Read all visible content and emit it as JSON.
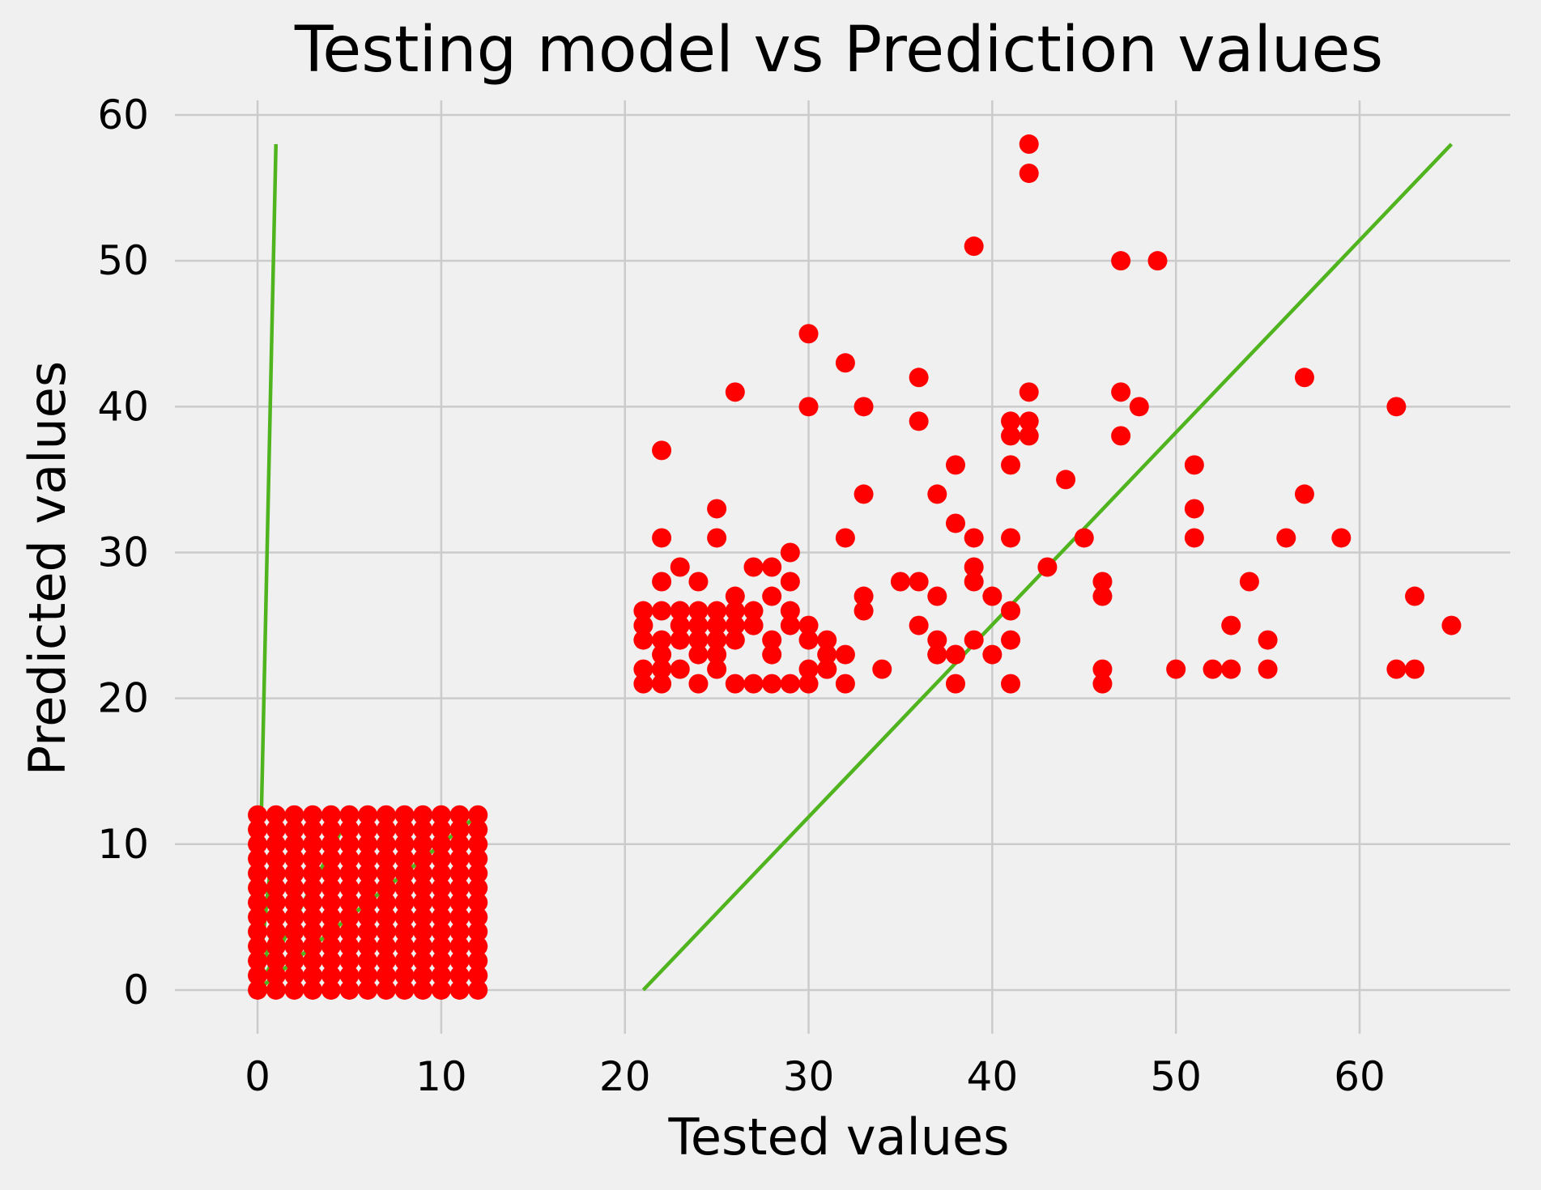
{
  "chart_data": {
    "type": "scatter",
    "title": "Testing model vs Prediction values",
    "xlabel": "Tested values",
    "ylabel": "Predicted values",
    "xlim": [
      -4.5,
      68.2
    ],
    "ylim": [
      -3,
      61
    ],
    "xticks": [
      0,
      10,
      20,
      30,
      40,
      50,
      60
    ],
    "yticks": [
      0,
      10,
      20,
      30,
      40,
      50,
      60
    ],
    "grid": true,
    "colors": {
      "background": "#f0f0f0",
      "grid": "#cbcbcb",
      "points": "#ff0000",
      "line": "#4fb41e"
    },
    "series": [
      {
        "type": "scatter",
        "x": [
          22,
          30,
          32,
          36,
          42,
          42,
          39,
          47,
          49,
          26,
          30,
          33,
          42,
          36,
          41,
          41,
          42,
          42,
          47,
          47,
          48,
          57,
          62,
          44,
          51,
          51,
          51,
          57,
          25,
          22,
          25,
          22,
          32,
          33,
          37,
          38,
          38,
          39,
          41,
          41,
          45,
          54,
          56,
          59,
          23,
          24,
          27,
          27,
          28,
          28,
          29,
          29,
          33,
          33,
          35,
          36,
          37,
          39,
          39,
          40,
          43,
          46,
          46,
          26,
          26,
          27,
          28,
          29,
          29,
          30,
          31,
          31,
          31,
          22,
          23,
          25,
          27,
          28,
          30,
          32,
          36,
          37,
          37,
          38,
          39,
          40,
          41,
          53,
          55,
          63,
          65,
          21,
          22,
          22,
          23,
          24,
          25,
          26,
          27,
          28,
          29,
          30,
          30,
          31,
          32,
          34,
          37,
          38,
          38,
          41,
          41,
          46,
          46,
          50,
          52,
          53,
          55,
          62,
          63,
          21,
          22,
          23,
          24,
          25,
          21,
          22,
          24,
          24,
          25,
          21,
          23,
          24,
          25,
          26,
          21,
          23,
          24,
          25,
          26,
          0,
          1,
          2,
          3,
          4,
          5,
          6,
          7,
          8,
          9,
          10,
          11,
          12,
          0,
          1,
          2,
          3,
          4,
          5,
          6,
          7,
          8,
          9,
          10,
          11,
          12,
          0,
          1,
          2,
          3,
          4,
          5,
          6,
          7,
          8,
          9,
          10,
          11,
          12,
          0,
          1,
          2,
          3,
          4,
          5,
          6,
          7,
          8,
          9,
          10,
          11,
          12,
          0,
          1,
          2,
          3,
          4,
          5,
          6,
          7,
          8,
          9,
          10,
          11,
          12,
          0,
          1,
          2,
          3,
          4,
          5,
          6,
          7,
          8,
          9,
          10,
          11,
          12,
          0,
          1,
          2,
          3,
          4,
          5,
          6,
          7,
          8,
          9,
          10,
          11,
          12,
          0,
          1,
          2,
          3,
          4,
          5,
          6,
          7,
          8,
          9,
          10,
          11,
          12,
          0,
          1,
          2,
          3,
          4,
          5,
          6,
          7,
          8,
          9,
          10,
          11,
          12,
          0,
          1,
          2,
          3,
          4,
          5,
          6,
          7,
          8,
          9,
          10,
          11,
          12,
          0,
          1,
          2,
          3,
          4,
          5,
          6,
          7,
          8,
          9,
          10,
          11,
          12,
          0,
          1,
          2,
          3,
          4,
          5,
          6,
          7,
          8,
          9,
          10,
          11,
          12,
          0,
          1,
          2,
          3,
          4,
          5,
          6,
          7,
          8,
          9,
          10,
          11,
          12
        ],
        "y": [
          37,
          45,
          43,
          42,
          58,
          56,
          51,
          50,
          50,
          41,
          40,
          40,
          41,
          39,
          39,
          38,
          39,
          38,
          41,
          38,
          40,
          42,
          40,
          35,
          36,
          33,
          31,
          34,
          33,
          31,
          31,
          28,
          31,
          34,
          34,
          36,
          32,
          31,
          36,
          31,
          31,
          28,
          31,
          31,
          29,
          28,
          29,
          26,
          29,
          27,
          30,
          28,
          27,
          26,
          28,
          28,
          27,
          29,
          28,
          27,
          29,
          28,
          27,
          27,
          25,
          25,
          24,
          26,
          25,
          25,
          24,
          23,
          22,
          26,
          26,
          25,
          25,
          23,
          24,
          23,
          25,
          24,
          23,
          23,
          24,
          23,
          24,
          25,
          24,
          27,
          25,
          21,
          21,
          22,
          22,
          21,
          22,
          21,
          21,
          21,
          21,
          21,
          22,
          22,
          21,
          22,
          23,
          21,
          23,
          21,
          26,
          22,
          21,
          22,
          22,
          22,
          22,
          22,
          22,
          22,
          23,
          24,
          25,
          23,
          24,
          24,
          23,
          24,
          24,
          25,
          25,
          25,
          24,
          24,
          26,
          26,
          26,
          26,
          26,
          0,
          0,
          0,
          0,
          0,
          0,
          0,
          0,
          0,
          0,
          0,
          0,
          0,
          1,
          1,
          1,
          1,
          1,
          1,
          1,
          1,
          1,
          1,
          1,
          1,
          1,
          2,
          2,
          2,
          2,
          2,
          2,
          2,
          2,
          2,
          2,
          2,
          2,
          2,
          3,
          3,
          3,
          3,
          3,
          3,
          3,
          3,
          3,
          3,
          3,
          3,
          3,
          4,
          4,
          4,
          4,
          4,
          4,
          4,
          4,
          4,
          4,
          4,
          4,
          4,
          5,
          5,
          5,
          5,
          5,
          5,
          5,
          5,
          5,
          5,
          5,
          5,
          5,
          6,
          6,
          6,
          6,
          6,
          6,
          6,
          6,
          6,
          6,
          6,
          6,
          6,
          7,
          7,
          7,
          7,
          7,
          7,
          7,
          7,
          7,
          7,
          7,
          7,
          7,
          8,
          8,
          8,
          8,
          8,
          8,
          8,
          8,
          8,
          8,
          8,
          8,
          8,
          9,
          9,
          9,
          9,
          9,
          9,
          9,
          9,
          9,
          9,
          9,
          9,
          9,
          10,
          10,
          10,
          10,
          10,
          10,
          10,
          10,
          10,
          10,
          10,
          10,
          10,
          11,
          11,
          11,
          11,
          11,
          11,
          11,
          11,
          11,
          11,
          11,
          11,
          11,
          12,
          12,
          12,
          12,
          12,
          12,
          12,
          12,
          12,
          12,
          12,
          12,
          12
        ]
      },
      {
        "type": "line",
        "segments": [
          {
            "x": [
              21,
              65
            ],
            "y": [
              0,
              58
            ]
          },
          {
            "x": [
              0,
              1
            ],
            "y": [
              0,
              58
            ]
          },
          {
            "x": [
              0,
              12
            ],
            "y": [
              0,
              12
            ]
          },
          {
            "x": [
              0,
              5
            ],
            "y": [
              0,
              12
            ]
          },
          {
            "x": [
              0,
              1
            ],
            "y": [
              0,
              12
            ]
          },
          {
            "x": [
              0,
              1
            ],
            "y": [
              0,
              5
            ]
          }
        ]
      }
    ]
  }
}
